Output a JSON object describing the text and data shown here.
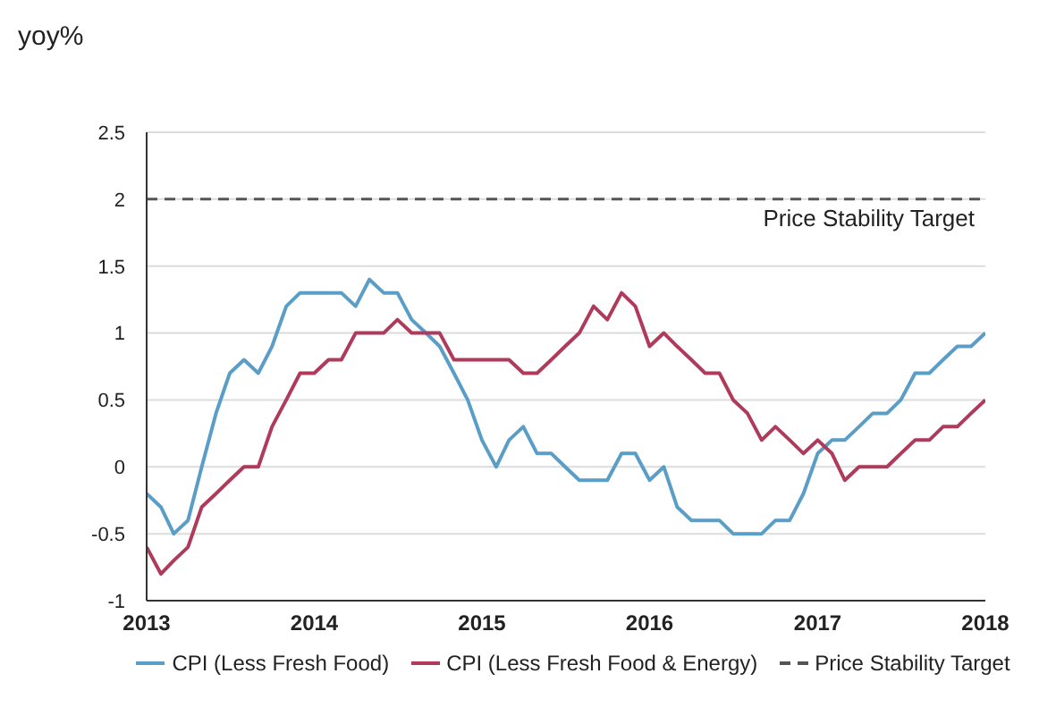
{
  "chart_data": {
    "type": "line",
    "ylabel": "yoy%",
    "x": [
      "2013-01",
      "2013-02",
      "2013-03",
      "2013-04",
      "2013-05",
      "2013-06",
      "2013-07",
      "2013-08",
      "2013-09",
      "2013-10",
      "2013-11",
      "2013-12",
      "2014-01",
      "2014-02",
      "2014-03",
      "2014-04",
      "2014-05",
      "2014-06",
      "2014-07",
      "2014-08",
      "2014-09",
      "2014-10",
      "2014-11",
      "2014-12",
      "2015-01",
      "2015-02",
      "2015-03",
      "2015-04",
      "2015-05",
      "2015-06",
      "2015-07",
      "2015-08",
      "2015-09",
      "2015-10",
      "2015-11",
      "2015-12",
      "2016-01",
      "2016-02",
      "2016-03",
      "2016-04",
      "2016-05",
      "2016-06",
      "2016-07",
      "2016-08",
      "2016-09",
      "2016-10",
      "2016-11",
      "2016-12",
      "2017-01",
      "2017-02",
      "2017-03",
      "2017-04",
      "2017-05",
      "2017-06",
      "2017-07",
      "2017-08",
      "2017-09",
      "2017-10",
      "2017-11",
      "2017-12",
      "2018-01"
    ],
    "series": [
      {
        "name": "CPI (Less Fresh Food)",
        "color": "#5a9ec8",
        "values": [
          -0.2,
          -0.3,
          -0.5,
          -0.4,
          0,
          0.4,
          0.7,
          0.8,
          0.7,
          0.9,
          1.2,
          1.3,
          1.3,
          1.3,
          1.3,
          1.2,
          1.4,
          1.3,
          1.3,
          1.1,
          1.0,
          0.9,
          0.7,
          0.5,
          0.2,
          0,
          0.2,
          0.3,
          0.1,
          0.1,
          0,
          -0.1,
          -0.1,
          -0.1,
          0.1,
          0.1,
          -0.1,
          0,
          -0.3,
          -0.4,
          -0.4,
          -0.4,
          -0.5,
          -0.5,
          -0.5,
          -0.4,
          -0.4,
          -0.2,
          0.1,
          0.2,
          0.2,
          0.3,
          0.4,
          0.4,
          0.5,
          0.7,
          0.7,
          0.8,
          0.9,
          0.9,
          1.0
        ]
      },
      {
        "name": "CPI (Less Fresh Food & Energy)",
        "color": "#b03a5b",
        "values": [
          -0.6,
          -0.8,
          -0.7,
          -0.6,
          -0.3,
          -0.2,
          -0.1,
          0,
          0,
          0.3,
          0.5,
          0.7,
          0.7,
          0.8,
          0.8,
          1.0,
          1.0,
          1.0,
          1.1,
          1.0,
          1.0,
          1.0,
          0.8,
          0.8,
          0.8,
          0.8,
          0.8,
          0.7,
          0.7,
          0.8,
          0.9,
          1.0,
          1.2,
          1.1,
          1.3,
          1.2,
          0.9,
          1.0,
          0.9,
          0.8,
          0.7,
          0.7,
          0.5,
          0.4,
          0.2,
          0.3,
          0.2,
          0.1,
          0.2,
          0.1,
          -0.1,
          0,
          0,
          0,
          0.1,
          0.2,
          0.2,
          0.3,
          0.3,
          0.4,
          0.5
        ]
      }
    ],
    "xticks": [
      {
        "value": "2013-01",
        "label": "2013"
      },
      {
        "value": "2014-01",
        "label": "2014"
      },
      {
        "value": "2015-01",
        "label": "2015"
      },
      {
        "value": "2016-01",
        "label": "2016"
      },
      {
        "value": "2017-01",
        "label": "2017"
      },
      {
        "value": "2018-01",
        "label": "2018"
      }
    ],
    "xlim": [
      "2013",
      "2018"
    ],
    "ylim": [
      -1,
      2.5
    ],
    "yticks": [
      -1,
      -0.5,
      0,
      0.5,
      1,
      1.5,
      2,
      2.5
    ],
    "ref_lines": [
      {
        "axis": "y",
        "value": 2,
        "label": "Price Stability Target",
        "color": "#555555",
        "line_style": "dashed"
      }
    ],
    "grid": "y",
    "legend": "bottom",
    "marker": "none",
    "line_style": "solid"
  }
}
